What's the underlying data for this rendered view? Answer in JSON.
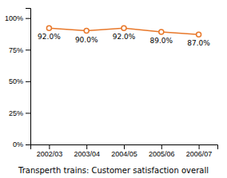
{
  "chart_data": {
    "type": "line",
    "title": "Transperth trains: Customer satisfaction overall",
    "categories": [
      "2002/03",
      "2003/04",
      "2004/05",
      "2005/06",
      "2006/07"
    ],
    "values": [
      0.92,
      0.9,
      0.92,
      0.89,
      0.87
    ],
    "value_labels": [
      "92.0%",
      "90.0%",
      "92.0%",
      "89.0%",
      "87.0%"
    ],
    "data_labels": true,
    "color": "#E8782A",
    "marker": "circle",
    "ylim": [
      0,
      1.08
    ],
    "yticks": [
      {
        "value": 0,
        "label": "0%"
      },
      {
        "value": 0.25,
        "label": "25%"
      },
      {
        "value": 0.5,
        "label": "50%"
      },
      {
        "value": 0.75,
        "label": "75%"
      },
      {
        "value": 1.0,
        "label": "100%"
      }
    ],
    "grid": false
  }
}
